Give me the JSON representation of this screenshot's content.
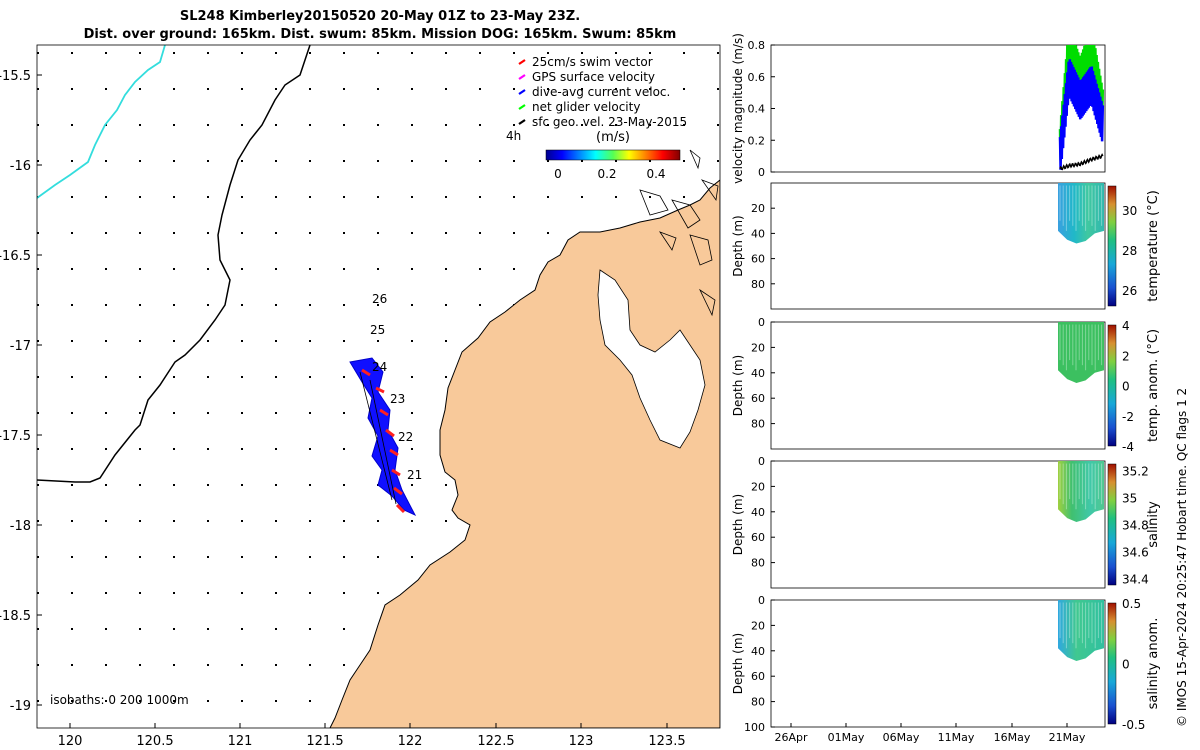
{
  "title_line1": "SL248 Kimberley20150520 20-May 01Z to 23-May 23Z.",
  "title_line2": "Dist. over ground: 165km. Dist. swum: 85km. Mission DOG: 165km. Swum: 85km",
  "map": {
    "x_ticks": [
      "120",
      "120.5",
      "121",
      "121.5",
      "122",
      "122.5",
      "123",
      "123.5"
    ],
    "y_ticks": [
      "-15.5",
      "-16",
      "-16.5",
      "-17",
      "-17.5",
      "-18",
      "-18.5",
      "-19"
    ],
    "legend": [
      {
        "label": "25cm/s swim vector",
        "color": "#ff0000"
      },
      {
        "label": "GPS surface velocity",
        "color": "#ff00ff"
      },
      {
        "label": "dive-avg current veloc.",
        "color": "#0000ff"
      },
      {
        "label": "net glider velocity",
        "color": "#00ff00"
      },
      {
        "label": "sfc geo. vel. 23-May-2015",
        "color": "#000000"
      }
    ],
    "colorbar_title": "(m/s)",
    "colorbar_ticks": [
      "0",
      "0.2",
      "0.4"
    ],
    "side_label": "4h",
    "day_labels": [
      "26",
      "25",
      "24",
      "23",
      "22",
      "21"
    ],
    "isobaths_label": "isobaths: 0   200  1000m"
  },
  "chart_data": [
    {
      "type": "line",
      "title": "velocity magnitude",
      "ylabel": "velocity magnitude (m/s)",
      "ylim": [
        0,
        0.8
      ],
      "y_ticks": [
        "0",
        "0.2",
        "0.4",
        "0.6",
        "0.8"
      ],
      "series": [
        {
          "name": "net glider velocity",
          "color": "#00dd00",
          "x": [
            20.2,
            21,
            22,
            23,
            24
          ],
          "y": [
            0.15,
            0.8,
            0.6,
            0.8,
            0.4
          ]
        },
        {
          "name": "dive-avg current veloc.",
          "color": "#0000ff",
          "x": [
            20.2,
            21,
            22,
            23,
            24
          ],
          "y": [
            0.1,
            0.6,
            0.45,
            0.55,
            0.3
          ]
        },
        {
          "name": "GPS surface velocity",
          "color": "#000000",
          "x": [
            20.2,
            21,
            22,
            23,
            24
          ],
          "y": [
            0.02,
            0.04,
            0.05,
            0.08,
            0.1
          ]
        }
      ]
    },
    {
      "type": "heatmap",
      "ylabel": "Depth (m)",
      "colorbar_label": "temperature (°C)",
      "colorbar_ticks": [
        "30",
        "28",
        "26"
      ],
      "colorbar_range": [
        25.2,
        31.2
      ],
      "y_ticks": [
        "20",
        "40",
        "60",
        "80"
      ],
      "depth_range": [
        0,
        100
      ],
      "profile_max_depth_m": [
        38,
        45,
        48,
        46,
        40,
        38
      ]
    },
    {
      "type": "heatmap",
      "ylabel": "Depth (m)",
      "colorbar_label": "temp. anom. (°C)",
      "colorbar_ticks": [
        "4",
        "2",
        "0",
        "-2",
        "-4"
      ],
      "colorbar_range": [
        -4,
        4
      ],
      "y_ticks": [
        "0",
        "20",
        "40",
        "60",
        "80"
      ],
      "depth_range": [
        0,
        100
      ],
      "profile_max_depth_m": [
        38,
        45,
        48,
        46,
        40,
        38
      ]
    },
    {
      "type": "heatmap",
      "ylabel": "Depth (m)",
      "colorbar_label": "salinity",
      "colorbar_ticks": [
        "35.2",
        "35",
        "34.8",
        "34.6",
        "34.4"
      ],
      "colorbar_range": [
        34.35,
        35.25
      ],
      "y_ticks": [
        "0",
        "20",
        "40",
        "60",
        "80"
      ],
      "depth_range": [
        0,
        100
      ],
      "profile_max_depth_m": [
        38,
        45,
        48,
        46,
        40,
        38
      ]
    },
    {
      "type": "heatmap",
      "ylabel": "Depth (m)",
      "colorbar_label": "salinity anom.",
      "colorbar_ticks": [
        "0.5",
        "0",
        "-0.5"
      ],
      "colorbar_range": [
        -0.5,
        0.5
      ],
      "y_ticks": [
        "0",
        "20",
        "40",
        "60",
        "80",
        "100"
      ],
      "x_ticks": [
        "26Apr",
        "01May",
        "06May",
        "11May",
        "16May",
        "21May"
      ],
      "depth_range": [
        0,
        100
      ],
      "profile_max_depth_m": [
        38,
        45,
        48,
        46,
        40,
        38
      ]
    }
  ],
  "side_annotation": "© IMOS 15-Apr-2024 20:25:47 Hobart time. QC flags 1  2",
  "colors": {
    "land": "#f8c99a",
    "axis": "#000000",
    "coast_cyan": "#33dddd"
  }
}
